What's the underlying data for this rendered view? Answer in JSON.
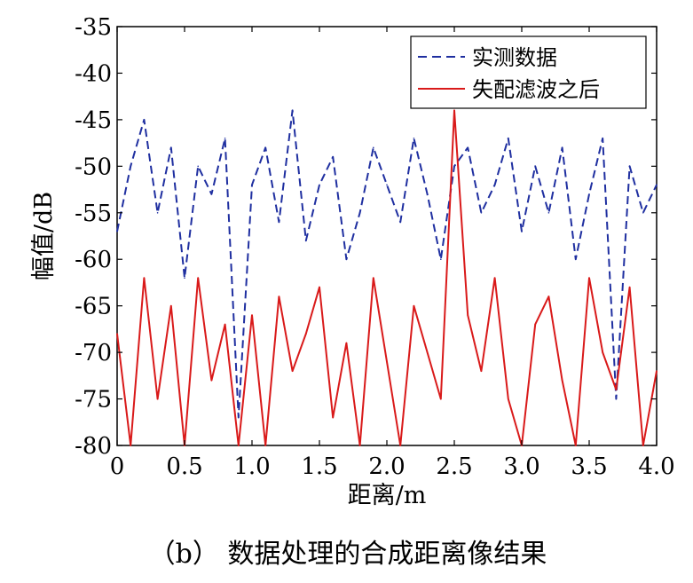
{
  "caption": "（b） 数据处理的合成距离像结果",
  "chart_data": {
    "type": "line",
    "title": "",
    "xlabel": "距离/m",
    "ylabel": "幅值/dB",
    "xlim": [
      0,
      4.0
    ],
    "ylim": [
      -80,
      -35
    ],
    "xticks": [
      0,
      0.5,
      1.0,
      1.5,
      2.0,
      2.5,
      3.0,
      3.5,
      4.0
    ],
    "xtick_labels": [
      "0",
      "0.5",
      "1.0",
      "1.5",
      "2.0",
      "2.5",
      "3.0",
      "3.5",
      "4.0"
    ],
    "yticks": [
      -35,
      -40,
      -45,
      -50,
      -55,
      -60,
      -65,
      -70,
      -75,
      -80
    ],
    "ytick_labels": [
      "-35",
      "-40",
      "-45",
      "-50",
      "-55",
      "-60",
      "-65",
      "-70",
      "-75",
      "-80"
    ],
    "grid": false,
    "legend_position": "top-right",
    "series": [
      {
        "name": "实测数据",
        "color": "#1f2fa0",
        "style": "dashed",
        "x": [
          0,
          0.1,
          0.2,
          0.3,
          0.4,
          0.5,
          0.6,
          0.7,
          0.8,
          0.9,
          1.0,
          1.1,
          1.2,
          1.3,
          1.4,
          1.5,
          1.6,
          1.7,
          1.8,
          1.9,
          2.0,
          2.1,
          2.2,
          2.3,
          2.4,
          2.5,
          2.6,
          2.7,
          2.8,
          2.9,
          3.0,
          3.1,
          3.2,
          3.3,
          3.4,
          3.5,
          3.6,
          3.7,
          3.8,
          3.9,
          4.0
        ],
        "y": [
          -57,
          -50,
          -45,
          -55,
          -48,
          -62,
          -50,
          -53,
          -47,
          -77,
          -52,
          -48,
          -56,
          -44,
          -58,
          -52,
          -49,
          -60,
          -55,
          -48,
          -52,
          -56,
          -47,
          -53,
          -60,
          -50,
          -48,
          -55,
          -52,
          -47,
          -57,
          -50,
          -55,
          -48,
          -60,
          -53,
          -47,
          -75,
          -50,
          -55,
          -52
        ]
      },
      {
        "name": "失配滤波之后",
        "color": "#d91a1a",
        "style": "solid",
        "x": [
          0,
          0.1,
          0.2,
          0.3,
          0.4,
          0.5,
          0.6,
          0.7,
          0.8,
          0.9,
          1.0,
          1.1,
          1.2,
          1.3,
          1.4,
          1.5,
          1.6,
          1.7,
          1.8,
          1.9,
          2.0,
          2.1,
          2.2,
          2.3,
          2.4,
          2.5,
          2.6,
          2.7,
          2.8,
          2.9,
          3.0,
          3.1,
          3.2,
          3.3,
          3.4,
          3.5,
          3.6,
          3.7,
          3.8,
          3.9,
          4.0
        ],
        "y": [
          -68,
          -80,
          -62,
          -75,
          -65,
          -80,
          -62,
          -73,
          -67,
          -80,
          -66,
          -80,
          -64,
          -72,
          -68,
          -63,
          -77,
          -69,
          -80,
          -62,
          -71,
          -80,
          -65,
          -70,
          -75,
          -44,
          -66,
          -72,
          -62,
          -75,
          -80,
          -67,
          -64,
          -73,
          -80,
          -62,
          -70,
          -74,
          -63,
          -80,
          -72
        ]
      }
    ]
  }
}
